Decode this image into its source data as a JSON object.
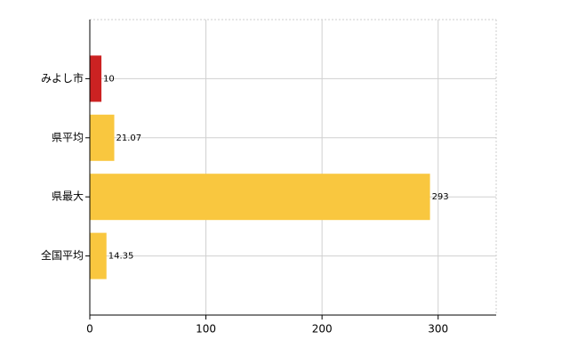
{
  "chart_data": {
    "type": "bar",
    "orientation": "horizontal",
    "categories": [
      "みよし市",
      "県平均",
      "県最大",
      "全国平均"
    ],
    "values": [
      10,
      21.07,
      293,
      14.35
    ],
    "colors": [
      "#cc2222",
      "#f9c73f",
      "#f9c73f",
      "#f9c73f"
    ],
    "xlim": [
      0,
      350
    ],
    "xticks": [
      0,
      100,
      200,
      300
    ],
    "grid": true
  }
}
